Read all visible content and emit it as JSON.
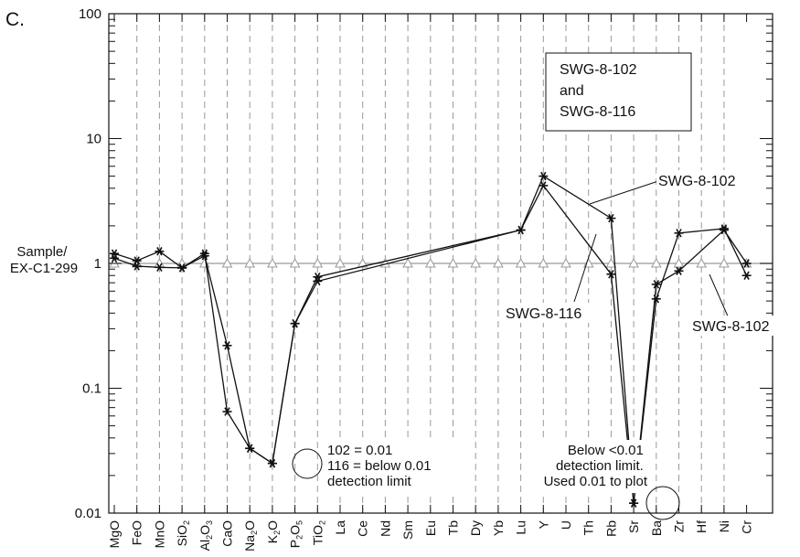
{
  "panel_label": "C.",
  "chart_data": {
    "type": "line",
    "yscale": "log",
    "ylim": [
      0.01,
      100
    ],
    "ylabel_lines": [
      "Sample/",
      "EX-C1-299"
    ],
    "yticks": [
      {
        "value": 0.01,
        "label": "0.01"
      },
      {
        "value": 0.1,
        "label": "0.1"
      },
      {
        "value": 1,
        "label": "1"
      },
      {
        "value": 10,
        "label": "10"
      },
      {
        "value": 100,
        "label": "100"
      }
    ],
    "categories": [
      {
        "html": "MgO"
      },
      {
        "html": "FeO"
      },
      {
        "html": "MnO"
      },
      {
        "html": "SiO<tspan dy='3' font-size='9'>2</tspan>"
      },
      {
        "html": "Al<tspan dy='3' font-size='9'>2</tspan><tspan dy='-3'>O</tspan><tspan dy='3' font-size='9'>3</tspan>"
      },
      {
        "html": "CaO"
      },
      {
        "html": "Na<tspan dy='3' font-size='9'>2</tspan><tspan dy='-3'>O</tspan>"
      },
      {
        "html": "K<tspan dy='3' font-size='9'>2</tspan><tspan dy='-3'>O</tspan>"
      },
      {
        "html": "P<tspan dy='3' font-size='9'>2</tspan><tspan dy='-3'>O</tspan><tspan dy='3' font-size='9'>5</tspan>"
      },
      {
        "html": "TiO<tspan dy='3' font-size='9'>2</tspan>"
      },
      {
        "html": "La"
      },
      {
        "html": "Ce"
      },
      {
        "html": "Nd"
      },
      {
        "html": "Sm"
      },
      {
        "html": "Eu"
      },
      {
        "html": "Tb"
      },
      {
        "html": "Dy"
      },
      {
        "html": "Yb"
      },
      {
        "html": "Lu"
      },
      {
        "html": "Y"
      },
      {
        "html": "U"
      },
      {
        "html": "Th"
      },
      {
        "html": "Rb"
      },
      {
        "html": "Sr"
      },
      {
        "html": "Ba"
      },
      {
        "html": "Zr"
      },
      {
        "html": "Hf"
      },
      {
        "html": "Ni"
      },
      {
        "html": "Cr"
      }
    ],
    "reference": {
      "value": 1,
      "indices": [
        0,
        1,
        2,
        3,
        4,
        5,
        6,
        7,
        8,
        9,
        10,
        11,
        12,
        13,
        14,
        15,
        16,
        17,
        18,
        19,
        20,
        21,
        22,
        23,
        24,
        25,
        26,
        27,
        28
      ]
    },
    "series": [
      {
        "name": "SWG-8-102",
        "points": [
          [
            0,
            1.2
          ],
          [
            1,
            1.05
          ],
          [
            2,
            1.25
          ],
          [
            3,
            0.92
          ],
          [
            4,
            1.2
          ],
          [
            5,
            0.065
          ],
          [
            6,
            0.033
          ],
          [
            7,
            0.025
          ],
          [
            8,
            0.33
          ],
          [
            9,
            0.78
          ],
          [
            18,
            1.85
          ],
          [
            19,
            5.0
          ],
          [
            22,
            2.3
          ],
          [
            23,
            0.012
          ],
          [
            24,
            0.52
          ],
          [
            25,
            1.75
          ],
          [
            27,
            1.9
          ],
          [
            28,
            0.8
          ]
        ]
      },
      {
        "name": "SWG-8-116",
        "points": [
          [
            0,
            1.1
          ],
          [
            1,
            0.95
          ],
          [
            2,
            0.93
          ],
          [
            3,
            0.92
          ],
          [
            4,
            1.15
          ],
          [
            5,
            0.22
          ],
          [
            6,
            0.033
          ],
          [
            7,
            0.025
          ],
          [
            8,
            0.33
          ],
          [
            9,
            0.72
          ],
          [
            18,
            1.85
          ],
          [
            19,
            4.2
          ],
          [
            22,
            0.82
          ],
          [
            23,
            0.012
          ],
          [
            24,
            0.68
          ],
          [
            25,
            0.87
          ],
          [
            27,
            1.85
          ],
          [
            28,
            1.0
          ]
        ]
      }
    ],
    "legend_lines": [
      "SWG-8-102",
      "and",
      "SWG-8-116"
    ],
    "annotations": {
      "label_102_upper": "SWG-8-102",
      "label_116": "SWG-8-116",
      "label_102_lower": "SWG-8-102",
      "k2o_note": [
        "102 = 0.01",
        "116 = below 0.01",
        "detection limit"
      ],
      "sr_note": [
        "Below <0.01",
        "detection limit.",
        "Used 0.01 to plot"
      ]
    }
  }
}
